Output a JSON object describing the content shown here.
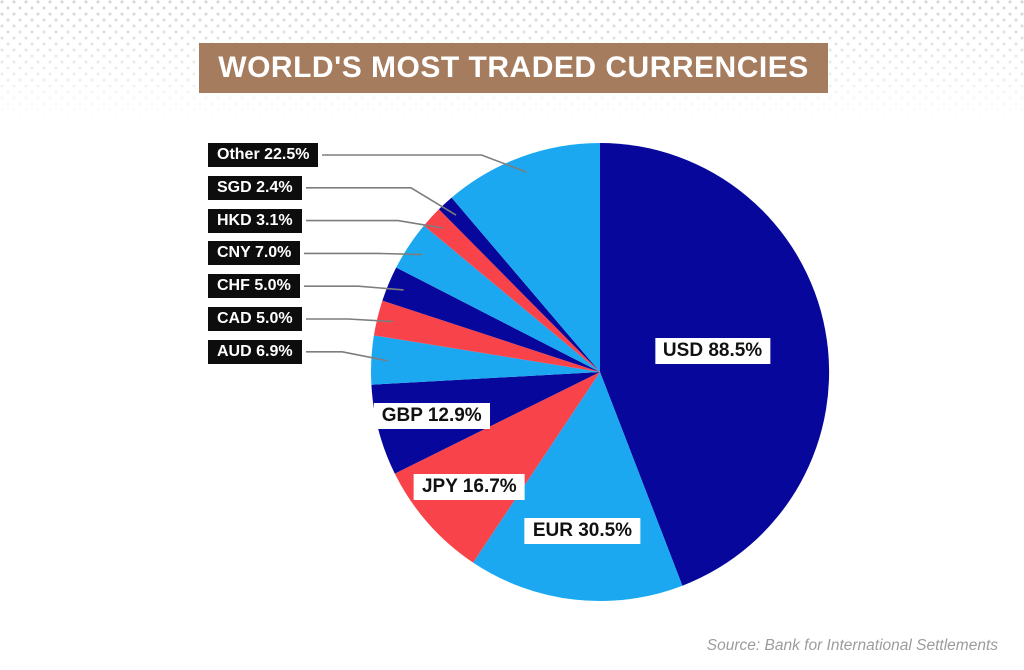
{
  "title": {
    "text": "WORLD'S MOST TRADED CURRENCIES",
    "bg": "#A67C5F",
    "color": "#FFFFFF"
  },
  "source": {
    "text": "Source: Bank for International Settlements",
    "color": "#9C9C9C"
  },
  "palette": {
    "navy": "#07079B",
    "blue": "#1BA8F0",
    "red": "#F9434B",
    "callout_box_bg": "#0D0D0D",
    "callout_box_text": "#FFFFFF",
    "inner_box_bg": "#FFFFFF",
    "inner_box_text": "#111111",
    "leader_line": "#7D7D7D",
    "dots": "#D6D4D2",
    "page_bg": "#FFFFFF"
  },
  "chart_data": {
    "type": "pie",
    "title": "WORLD'S MOST TRADED CURRENCIES",
    "start_angle_deg": 0,
    "direction": "clockwise",
    "values_basis": "share of daily FX turnover, slices total 200.5 and fill the full circle",
    "legend_position": "callout-left",
    "slices": [
      {
        "label": "USD",
        "value": 88.5,
        "display": "USD 88.5%",
        "color_key": "navy",
        "label_style": "inside",
        "label_r": 0.5
      },
      {
        "label": "EUR",
        "value": 30.5,
        "display": "EUR 30.5%",
        "color_key": "blue",
        "label_style": "inside",
        "label_r": 0.7
      },
      {
        "label": "JPY",
        "value": 16.7,
        "display": "JPY 16.7%",
        "color_key": "red",
        "label_style": "inside",
        "label_r": 0.76
      },
      {
        "label": "GBP",
        "value": 12.9,
        "display": "GBP 12.9%",
        "color_key": "navy",
        "label_style": "inside",
        "label_r": 0.76
      },
      {
        "label": "AUD",
        "value": 6.9,
        "display": "AUD 6.9%",
        "color_key": "blue",
        "label_style": "callout"
      },
      {
        "label": "CAD",
        "value": 5.0,
        "display": "CAD 5.0%",
        "color_key": "red",
        "label_style": "callout"
      },
      {
        "label": "CHF",
        "value": 5.0,
        "display": "CHF 5.0%",
        "color_key": "navy",
        "label_style": "callout"
      },
      {
        "label": "CNY",
        "value": 7.0,
        "display": "CNY 7.0%",
        "color_key": "blue",
        "label_style": "callout"
      },
      {
        "label": "HKD",
        "value": 3.1,
        "display": "HKD 3.1%",
        "color_key": "red",
        "label_style": "callout"
      },
      {
        "label": "SGD",
        "value": 2.4,
        "display": "SGD 2.4%",
        "color_key": "navy",
        "label_style": "callout"
      },
      {
        "label": "Other",
        "value": 22.5,
        "display": "Other 22.5%",
        "color_key": "blue",
        "label_style": "callout"
      }
    ],
    "callout_order": [
      "Other",
      "SGD",
      "HKD",
      "CNY",
      "CHF",
      "CAD",
      "AUD"
    ]
  }
}
